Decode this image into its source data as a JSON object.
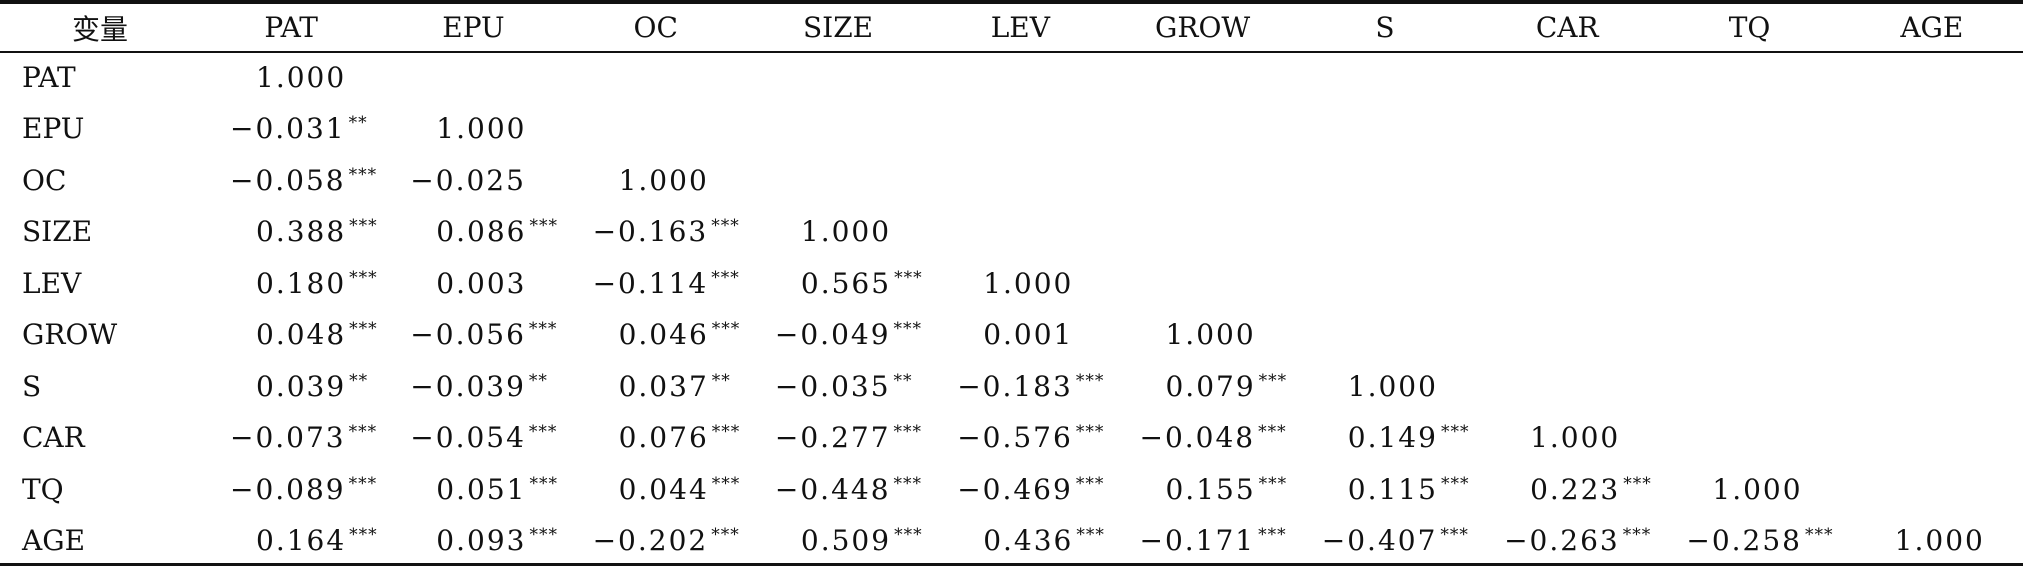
{
  "table": {
    "headers": [
      "变量",
      "PAT",
      "EPU",
      "OC",
      "SIZE",
      "LEV",
      "GROW",
      "S",
      "CAR",
      "TQ",
      "AGE"
    ],
    "rows": [
      {
        "name": "PAT",
        "cells": [
          {
            "v": "1.000",
            "s": ""
          }
        ]
      },
      {
        "name": "EPU",
        "cells": [
          {
            "v": "−0.031",
            "s": "**"
          },
          {
            "v": "1.000",
            "s": ""
          }
        ]
      },
      {
        "name": "OC",
        "cells": [
          {
            "v": "−0.058",
            "s": "***"
          },
          {
            "v": "−0.025",
            "s": ""
          },
          {
            "v": "1.000",
            "s": ""
          }
        ]
      },
      {
        "name": "SIZE",
        "cells": [
          {
            "v": "0.388",
            "s": "***"
          },
          {
            "v": "0.086",
            "s": "***"
          },
          {
            "v": "−0.163",
            "s": "***"
          },
          {
            "v": "1.000",
            "s": ""
          }
        ]
      },
      {
        "name": "LEV",
        "cells": [
          {
            "v": "0.180",
            "s": "***"
          },
          {
            "v": "0.003",
            "s": ""
          },
          {
            "v": "−0.114",
            "s": "***"
          },
          {
            "v": "0.565",
            "s": "***"
          },
          {
            "v": "1.000",
            "s": ""
          }
        ]
      },
      {
        "name": "GROW",
        "cells": [
          {
            "v": "0.048",
            "s": "***"
          },
          {
            "v": "−0.056",
            "s": "***"
          },
          {
            "v": "0.046",
            "s": "***"
          },
          {
            "v": "−0.049",
            "s": "***"
          },
          {
            "v": "0.001",
            "s": ""
          },
          {
            "v": "1.000",
            "s": ""
          }
        ]
      },
      {
        "name": "S",
        "cells": [
          {
            "v": "0.039",
            "s": "**"
          },
          {
            "v": "−0.039",
            "s": "**"
          },
          {
            "v": "0.037",
            "s": "**"
          },
          {
            "v": "−0.035",
            "s": "**"
          },
          {
            "v": "−0.183",
            "s": "***"
          },
          {
            "v": "0.079",
            "s": "***"
          },
          {
            "v": "1.000",
            "s": ""
          }
        ]
      },
      {
        "name": "CAR",
        "cells": [
          {
            "v": "−0.073",
            "s": "***"
          },
          {
            "v": "−0.054",
            "s": "***"
          },
          {
            "v": "0.076",
            "s": "***"
          },
          {
            "v": "−0.277",
            "s": "***"
          },
          {
            "v": "−0.576",
            "s": "***"
          },
          {
            "v": "−0.048",
            "s": "***"
          },
          {
            "v": "0.149",
            "s": "***"
          },
          {
            "v": "1.000",
            "s": ""
          }
        ]
      },
      {
        "name": "TQ",
        "cells": [
          {
            "v": "−0.089",
            "s": "***"
          },
          {
            "v": "0.051",
            "s": "***"
          },
          {
            "v": "0.044",
            "s": "***"
          },
          {
            "v": "−0.448",
            "s": "***"
          },
          {
            "v": "−0.469",
            "s": "***"
          },
          {
            "v": "0.155",
            "s": "***"
          },
          {
            "v": "0.115",
            "s": "***"
          },
          {
            "v": "0.223",
            "s": "***"
          },
          {
            "v": "1.000",
            "s": ""
          }
        ]
      },
      {
        "name": "AGE",
        "cells": [
          {
            "v": "0.164",
            "s": "***"
          },
          {
            "v": "0.093",
            "s": "***"
          },
          {
            "v": "−0.202",
            "s": "***"
          },
          {
            "v": "0.509",
            "s": "***"
          },
          {
            "v": "0.436",
            "s": "***"
          },
          {
            "v": "−0.171",
            "s": "***"
          },
          {
            "v": "−0.407",
            "s": "***"
          },
          {
            "v": "−0.263",
            "s": "***"
          },
          {
            "v": "−0.258",
            "s": "***"
          },
          {
            "v": "1.000",
            "s": ""
          }
        ]
      }
    ]
  }
}
